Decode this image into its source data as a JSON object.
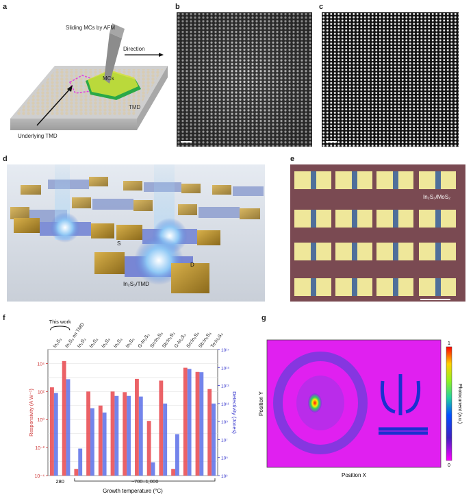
{
  "panels": {
    "a": {
      "letter": "a",
      "label_afm": "Sliding MCs by AFM",
      "label_direction": "Direction",
      "label_mcs": "MCs",
      "label_tmd": "TMD",
      "label_underlying": "Underlying TMD"
    },
    "b": {
      "letter": "b"
    },
    "c": {
      "letter": "c"
    },
    "d": {
      "letter": "d",
      "label_s": "S",
      "label_d": "D",
      "label_material": "In₂S₃/TMD"
    },
    "e": {
      "letter": "e",
      "label_material": "In₂S₃/MoS₂"
    },
    "f": {
      "letter": "f"
    },
    "g": {
      "letter": "g"
    }
  },
  "chart_data": [
    {
      "type": "bar",
      "panel": "f",
      "this_work_label": "This work",
      "categories": [
        "In₂S₃",
        "In₂S₃ on TMD",
        "In₂S₃",
        "In₂S₃",
        "In₂S₃",
        "In₂S₃",
        "In₂S₃",
        "G-In₂S₃",
        "Sn:In₂S₃",
        "Sb:In₂S₃",
        "G-In₂S₃",
        "Sn:In₂S₃",
        "Sb:In₂S₃",
        "Te:In₂S₃"
      ],
      "ylabel": "Responsivity (A W⁻¹)",
      "y2label": "Detectivity (Jones)",
      "xlabel": "Growth temperature (°C)",
      "x_group_labels": [
        "280",
        "~700–1,000"
      ],
      "ylim": [
        0.0001,
        100000
      ],
      "y2lim": [
        1000,
        100000000000000000
      ],
      "y_ticks": [
        "10⁴",
        "10²",
        "10⁰",
        "10⁻²",
        "10⁻⁴"
      ],
      "y2_ticks": [
        "10¹⁷",
        "10¹⁵",
        "10¹³",
        "10¹¹",
        "10⁹",
        "10⁷",
        "10⁵",
        "10³"
      ],
      "series": [
        {
          "name": "Responsivity",
          "axis": "left",
          "color": "#e8474c",
          "values": [
            200,
            15000,
            0.0003,
            100,
            10,
            100,
            90,
            800,
            0.8,
            600,
            0.0003,
            5000,
            2500,
            150
          ]
        },
        {
          "name": "Detectivity",
          "axis": "right",
          "color": "#5a6ee8",
          "values": [
            1500000000000.0,
            50000000000000.0,
            1000000.0,
            30000000000.0,
            10000000000.0,
            700000000000.0,
            700000000000.0,
            600000000000.0,
            30000.0,
            100000000000.0,
            40000000.0,
            700000000000000.0,
            300000000000000.0,
            100000000000.0
          ]
        }
      ]
    },
    {
      "type": "heatmap",
      "panel": "g",
      "xlabel": "Position X",
      "ylabel": "Position Y",
      "colorbar_label": "Photocurrent (a.u.)",
      "colorbar_min": "0",
      "colorbar_max": "1"
    }
  ]
}
